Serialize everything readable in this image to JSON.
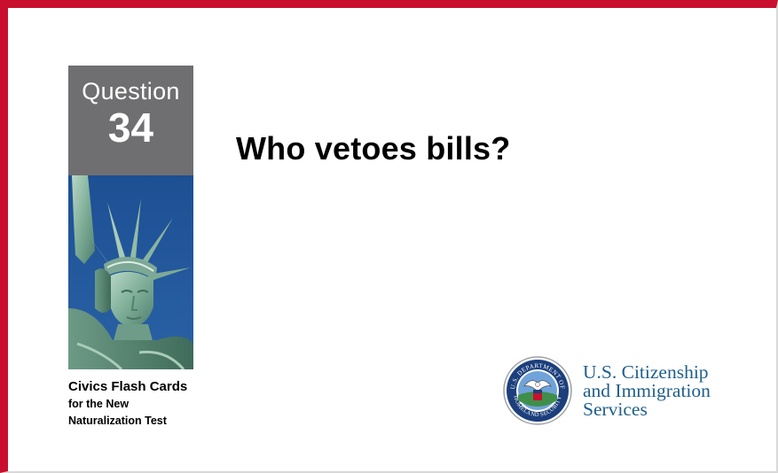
{
  "question_box": {
    "label": "Question",
    "number": "34"
  },
  "question": {
    "text": "Who vetoes bills?"
  },
  "caption": {
    "line1": "Civics Flash Cards",
    "line2": "for the New",
    "line3": "Naturalization Test"
  },
  "agency": {
    "line1": "U.S. Citizenship",
    "line2": "and Immigration",
    "line3": "Services",
    "seal_text_top": "U.S. DEPARTMENT OF",
    "seal_text_bottom": "HOMELAND SECURITY"
  },
  "colors": {
    "border": "#c8102e",
    "question_box": "#6f6f71",
    "agency_text": "#1f5f8b",
    "sky": "#1d4f93"
  },
  "icons": {
    "statue": "statue-of-liberty-image",
    "seal": "dhs-seal-icon"
  }
}
